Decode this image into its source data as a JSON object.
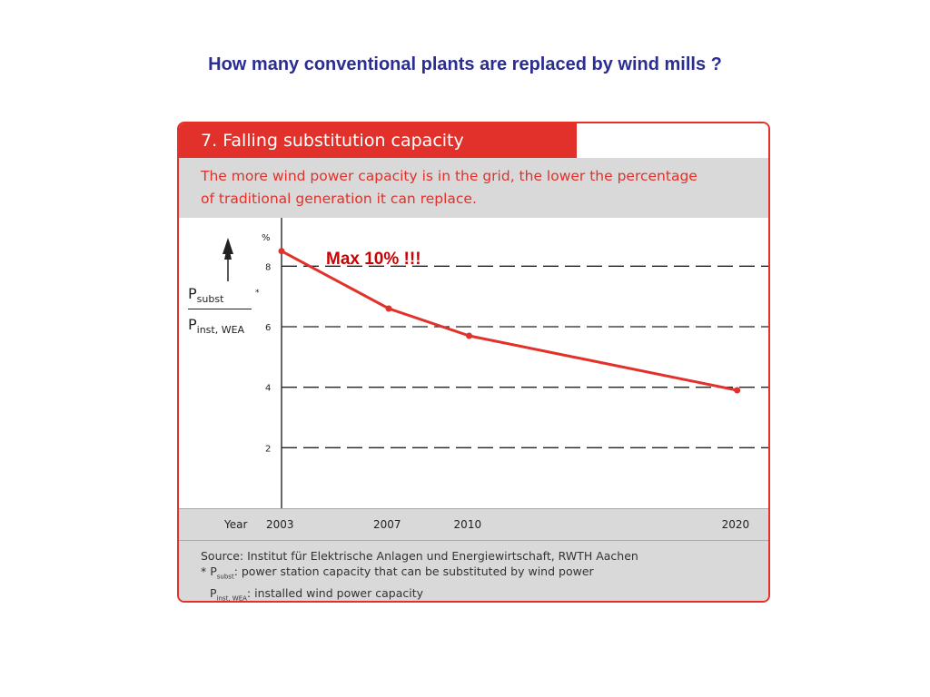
{
  "slide": {
    "title": "How many conventional plants are replaced by wind mills ?",
    "annotation": "Max 10% !!!"
  },
  "card": {
    "header": "7. Falling substitution capacity",
    "subtitle_line1": "The more wind power capacity is in the grid, the lower the percentage",
    "subtitle_line2": "of traditional generation it can replace.",
    "ylabel_top": "P",
    "ylabel_top_sub": "subst",
    "ylabel_star": "*",
    "ylabel_bottom": "P",
    "ylabel_bottom_sub": "inst, WEA",
    "xlabel": "Year",
    "source_line1": "Source: Institut für Elektrische Anlagen und Energiewirtschaft, RWTH Aachen",
    "source_line2_prefix": "* P",
    "source_line2_sub": "subst",
    "source_line2_text": ": power station capacity that can be substituted by wind power",
    "source_line3_prefix": "P",
    "source_line3_sub": "inst, WEA",
    "source_line3_text": ": installed wind power capacity"
  },
  "chart_data": {
    "type": "line",
    "ylabel": "%",
    "xlabel": "Year",
    "x": [
      2003,
      2007,
      2010,
      2020
    ],
    "series": [
      {
        "values": [
          8.5,
          6.6,
          5.7,
          3.9
        ]
      }
    ],
    "x_ticks": [
      "2003",
      "2007",
      "2010",
      "2020"
    ],
    "y_ticks": [
      "2",
      "4",
      "6",
      "8"
    ],
    "ylim": [
      0,
      9.6
    ],
    "xlim": [
      2003,
      2021.3
    ],
    "grid": "horizontal dashed",
    "line_color": "#e2302a"
  }
}
